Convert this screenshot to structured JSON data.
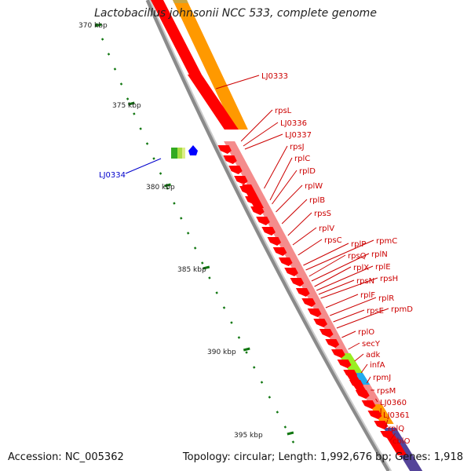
{
  "title": "Lactobacillus johnsonii NCC 533, complete genome",
  "accession": "Accession: NC_005362",
  "topology": "Topology: circular; Length: 1,992,676 bp; Genes: 1,918",
  "colors": {
    "gene_forward": "#ff0000",
    "gene_reverse": "#ff0000",
    "gene_label": "#cc0000",
    "highlight_gene_label": "#0000cc",
    "track_pink": "#f48c8c",
    "track_orange": "#ff9900",
    "track_lime": "#99ee22",
    "track_cyan": "#22aaee",
    "track_purple": "#554499",
    "backbone": "#888888",
    "tick": "#117711"
  },
  "scale_labels": [
    "370 kbp",
    "375 kbp",
    "380 kbp",
    "385 kbp",
    "390 kbp",
    "395 kbp"
  ],
  "highlight_gene": "LJ0334",
  "gene_labels": [
    "LJ0333",
    "rpsL",
    "LJ0336",
    "LJ0337",
    "rpsJ",
    "rplC",
    "rplD",
    "rplW",
    "rplB",
    "rpsS",
    "rplV",
    "rpsC",
    "rplP",
    "rpmC",
    "rpsQ",
    "rplN",
    "rplX",
    "rplE",
    "rpsN",
    "rpsH",
    "rplF",
    "rplR",
    "rpsE",
    "rpmD",
    "rplO",
    "secY",
    "adk",
    "infA",
    "rpmJ",
    "rpsM",
    "LJ0360",
    "LJ0361",
    "rplQ",
    "cbiO"
  ]
}
